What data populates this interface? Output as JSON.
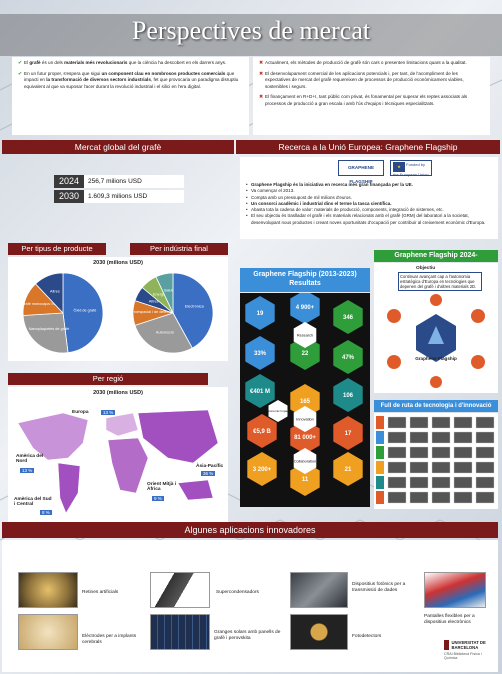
{
  "title": "Perspectives de mercat",
  "intro_left": [
    {
      "pre": "El ",
      "b1": "grafè",
      "mid": " és un dels ",
      "b2": "materials més revolucionaris",
      "post": " que la ciència ha descobert en els darrers anys."
    },
    {
      "pre": "En un futur proper, s'espera que sigui ",
      "b1": "un component clau en nombrosos productes comercials",
      "mid": " que impacti en ",
      "b2": "la transformació de diversos sectors industrials",
      "post": ", fet que provocaria un paradigma disruptiu equivalent al que va suposar l'acer durant la revolució industrial i el silici en l'era digital."
    }
  ],
  "intro_right": [
    "Actualment, els mètodes de producció de grafè són cars o presenten limitacions quant a la qualitat.",
    "El desenvolupament comercial de les aplicacions potencials i, per tant, de l'acompliment de les expectatives de mercat del grafè requereixen de processos de producció econòmicament viables, sostenibles i segurs.",
    "El finançament en R+D+I, tant públic com privat, és fonamental per superar els reptes associats als processos de producció a gran escala i amb l'ús d'equips i tècniques especialitzats."
  ],
  "sections": {
    "market": "Mercat global del grafè",
    "research": "Recerca a la Unió Europea: Graphene Flagship",
    "apps": "Algunes aplicacions innovadores"
  },
  "market": {
    "rows": [
      {
        "year": "2024",
        "value": "256,7 milions USD"
      },
      {
        "year": "2030",
        "value": "1.609,3 milions USD"
      }
    ],
    "by_product": "Per tipus de producte",
    "by_industry": "Per indústria final",
    "year_label": "2030 (milions USD)",
    "by_region": "Per regió",
    "region_year": "2030 (milions USD)"
  },
  "chart_data": [
    {
      "type": "pie",
      "title": "Per tipus de producte",
      "slices": [
        {
          "label": "Òxid de grafè",
          "value": 48,
          "color": "#3b6fc4"
        },
        {
          "label": "Nanoplaquetes de grafè",
          "value": 26,
          "color": "#9a9a9a"
        },
        {
          "label": "Grafè monocapa i bicapa",
          "value": 14,
          "color": "#d8762a"
        },
        {
          "label": "Altres",
          "value": 12,
          "color": "#2a4a8a"
        }
      ]
    },
    {
      "type": "pie",
      "title": "Per indústria final",
      "slices": [
        {
          "label": "Electrònica",
          "value": 42,
          "color": "#3b6fc4"
        },
        {
          "label": "Automoció",
          "value": 28,
          "color": "#9a9a9a"
        },
        {
          "label": "Aeroespacial i de defensa",
          "value": 10,
          "color": "#d8762a"
        },
        {
          "label": "Altres",
          "value": 6,
          "color": "#2a4a8a"
        },
        {
          "label": "Energia",
          "value": 7,
          "color": "#8fb35a"
        },
        {
          "label": "Salut",
          "value": 7,
          "color": "#5aa0a0"
        }
      ]
    }
  ],
  "regions": [
    {
      "name": "Europa",
      "pct": "13 %"
    },
    {
      "name": "Amèrica del Nord",
      "pct": "13 %"
    },
    {
      "name": "Amèrica del Sud i Central",
      "pct": "8 %"
    },
    {
      "name": "Orient Mitjà i Àfrica",
      "pct": "9 %"
    },
    {
      "name": "Àsia-Pacífic",
      "pct": "36 %"
    }
  ],
  "flagship": {
    "logo": "GRAPHENE FLAGSHIP",
    "eu": "Funded by the European Union",
    "bullets": [
      "Graphene Flagship és la iniciativa en recerca més gran finançada per la UE.",
      "Va començar el 2013.",
      "Compta amb un pressupost de mil milions d'euros.",
      "Un consorci acadèmic i industrial dins el terme la tasca científica.",
      "Abasta tota la cadena de valor: materials de producció, components, integració de sistemes, etc.",
      "El seu objectiu és traslladar el grafè i els materials relacionats amb el grafè (GRM) del laboratori a la societat, desenvolupant nous productes i creant noves oportunitats d'ocupació per contribuir al creixement econòmic d'Europa."
    ],
    "results_title": "Graphene Flagship (2013-2023) Resultats",
    "hex_values": [
      "19",
      "4 900+",
      "346",
      "33%",
      "47%",
      "€401 M",
      "€5,9 B",
      "106",
      "81 000+",
      "17",
      "3 200+",
      "11",
      "21",
      "165",
      "22"
    ],
    "hex_center": [
      "Research",
      "Innovation",
      "Collaboration"
    ],
    "hex_side": "Economic Impact",
    "flag2024": "Graphene Flagship 2024-",
    "obj_title": "Objectiu",
    "obj_text": "Continuar avançant cap a l'autonomia estratègica d'Europa en tecnologies que depenen del grafè i d'altres materials 2D.",
    "hub": "Graphene Flagship",
    "roadmap": "Full de ruta de tecnologia i d'innovació"
  },
  "apps": [
    "Retines artificials",
    "Supercondensadors",
    "Dispositius fotònics per a transmissió de dades",
    "Pantalles flexibles per a dispositius electrònics",
    "Elèctrodes per a implants cerebrals",
    "Granges solars amb panells de grafè i perovskita",
    "Fotodetectors"
  ],
  "ub": {
    "name": "UNIVERSITAT DE BARCELONA",
    "crai": "CRAI Biblioteca Física i Química"
  },
  "colors": {
    "maroon": "#7b1a1a",
    "blue": "#3b6fc4",
    "orange": "#d8762a",
    "green": "#2e9d3a"
  }
}
